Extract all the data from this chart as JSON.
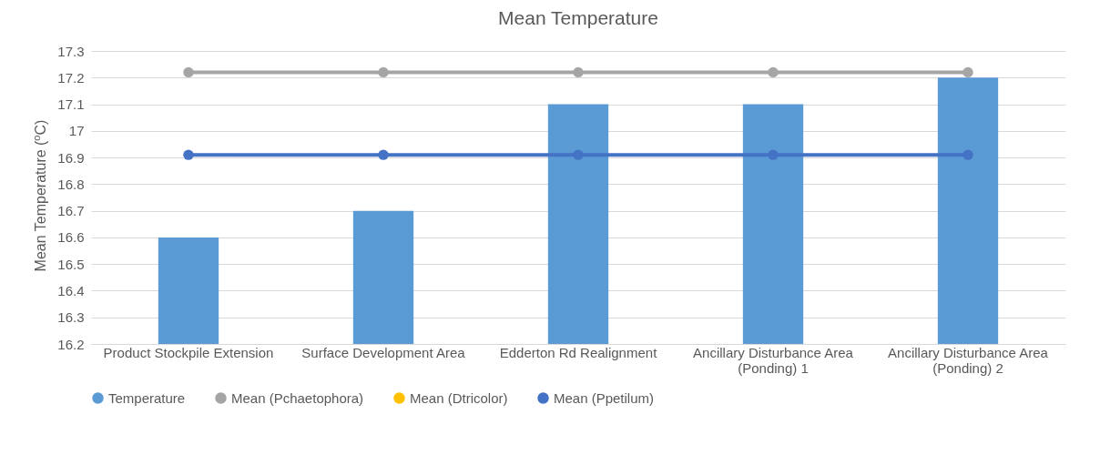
{
  "chart_data": {
    "type": "bar",
    "title": "Mean Temperature",
    "ylabel": "Mean Temperature ($^{o}$C)",
    "categories": [
      "Product Stockpile Extension",
      "Surface Development Area",
      "Edderton Rd Realignment",
      "Ancillary Disturbance Area (Ponding) 1",
      "Ancillary Disturbance Area (Ponding) 2"
    ],
    "series": [
      {
        "name": "Temperature",
        "color": "#5b9bd5",
        "values": [
          16.6,
          16.7,
          17.1,
          17.1,
          17.2
        ]
      },
      {
        "name": "Mean (Pchaetophora)",
        "type": "line",
        "color": "#a5a5a5",
        "values": [
          17.22,
          17.22,
          17.22,
          17.22,
          17.22
        ]
      },
      {
        "name": "Mean (Dtricolor)",
        "type": "line",
        "color": "#ffc000",
        "values": [
          null,
          null,
          null,
          null,
          null
        ]
      },
      {
        "name": "Mean (Ppetilum)",
        "type": "line",
        "color": "#4472c4",
        "values": [
          16.91,
          16.91,
          16.91,
          16.91,
          16.91
        ]
      }
    ],
    "ylim": [
      16.2,
      17.3
    ],
    "yticks": [
      16.2,
      16.3,
      16.4,
      16.5,
      16.6,
      16.7,
      16.8,
      16.9,
      {
        "value": 17,
        "label": "17"
      },
      17.1,
      17.2,
      17.3
    ],
    "grid": "y",
    "legend": "bottom",
    "marker": "circle"
  }
}
